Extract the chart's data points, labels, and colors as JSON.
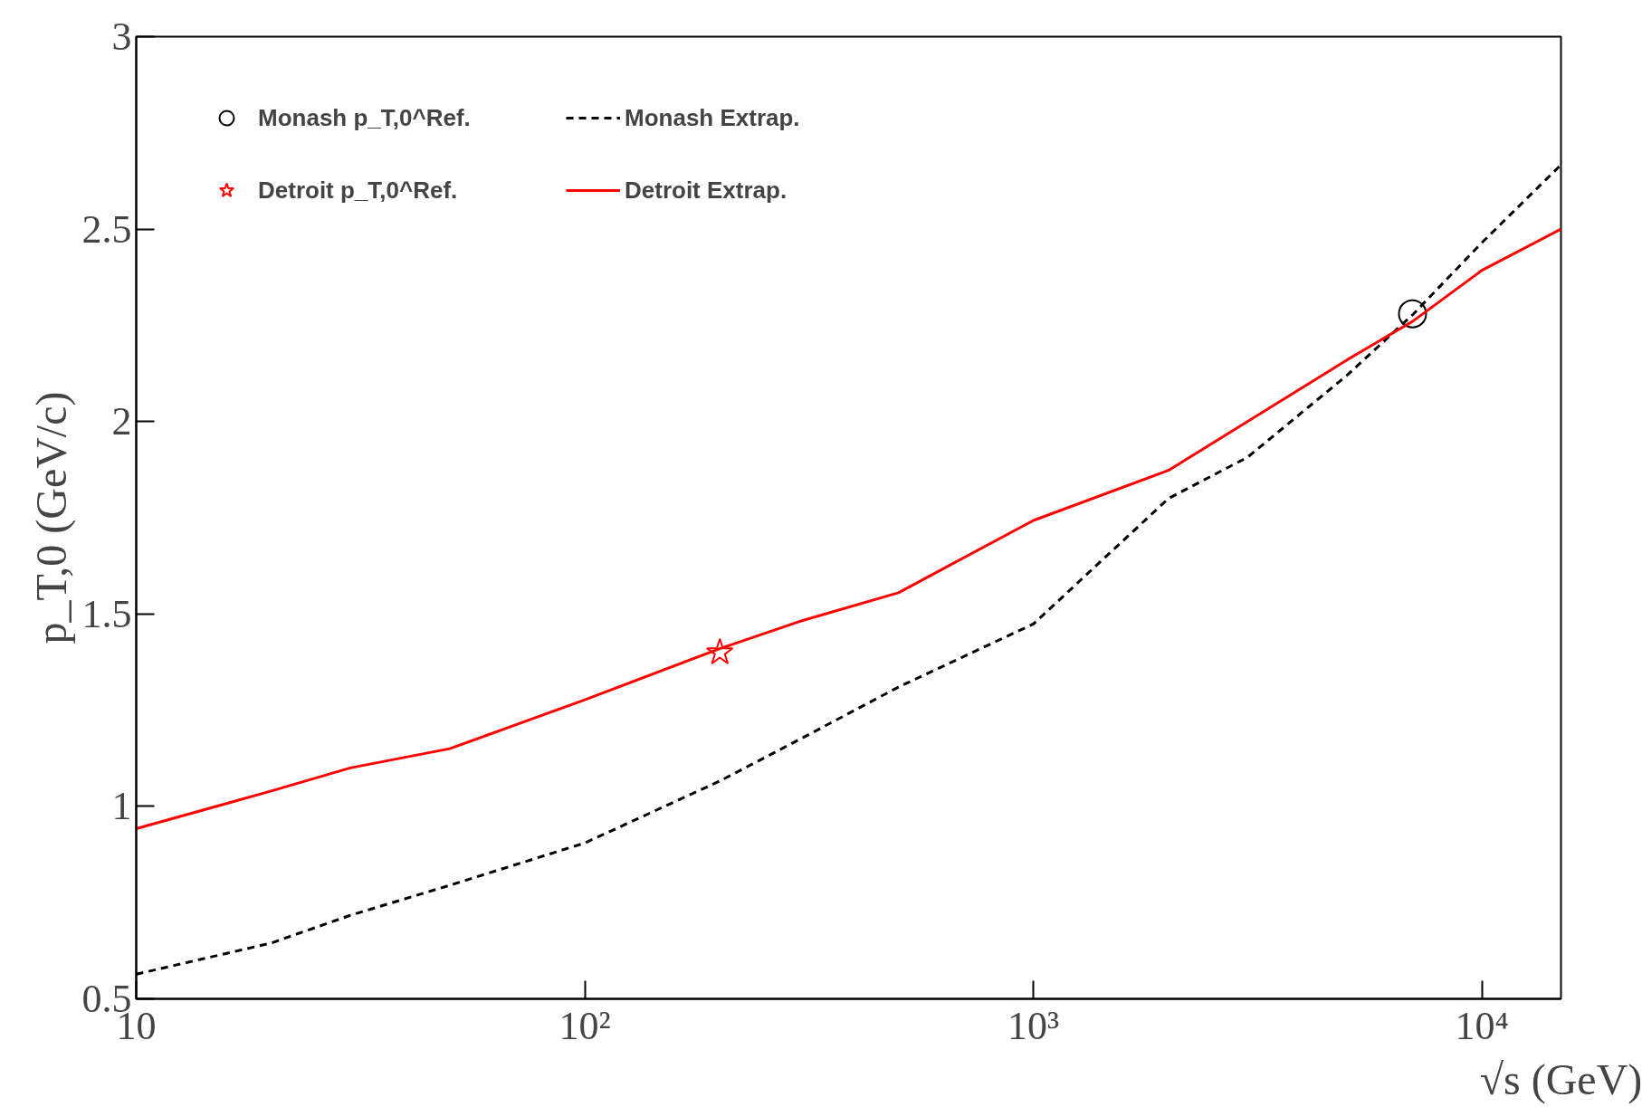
{
  "chart_data": {
    "type": "line",
    "xlabel": "√s (GeV)",
    "ylabel": "p_T,0 (GeV/c)",
    "log": "x",
    "xlim": [
      10,
      15000
    ],
    "ylim": [
      0.5,
      3
    ],
    "xticks": [
      {
        "value": 10,
        "label": "10"
      },
      {
        "value": 100,
        "label": "10²"
      },
      {
        "value": 1000,
        "label": "10³"
      },
      {
        "value": 10000,
        "label": "10⁴"
      }
    ],
    "yticks": [
      0.5,
      1,
      1.5,
      2,
      2.5,
      3
    ],
    "grid": false,
    "legend": "top left",
    "series": [
      {
        "name": "Monash p_T,0^Ref.",
        "type": "scatter",
        "marker": "circle",
        "color": "#000000",
        "x": [
          7000
        ],
        "values": [
          2.28
        ]
      },
      {
        "name": "Monash Extrap.",
        "line_style": "dashed",
        "color": "#000000",
        "x": [
          10,
          20,
          30,
          50,
          100,
          200,
          300,
          500,
          1000,
          2000,
          3000,
          5000,
          7000,
          10000,
          15000
        ],
        "values": [
          0.564,
          0.645,
          0.717,
          0.795,
          0.905,
          1.066,
          1.173,
          1.31,
          1.474,
          1.8,
          1.907,
          2.12,
          2.277,
          2.465,
          2.667
        ]
      },
      {
        "name": "Detroit p_T,0^Ref.",
        "type": "scatter",
        "marker": "star",
        "color": "#ff0000",
        "x": [
          200
        ],
        "values": [
          1.4
        ]
      },
      {
        "name": "Detroit Extrap.",
        "line_style": "solid",
        "color": "#ff0000",
        "x": [
          10,
          20,
          30,
          50,
          100,
          200,
          300,
          500,
          1000,
          2000,
          3000,
          5000,
          7000,
          10000,
          15000
        ],
        "values": [
          0.942,
          1.04,
          1.1,
          1.15,
          1.277,
          1.41,
          1.48,
          1.555,
          1.743,
          1.873,
          2.0,
          2.16,
          2.26,
          2.393,
          2.5
        ]
      }
    ]
  }
}
